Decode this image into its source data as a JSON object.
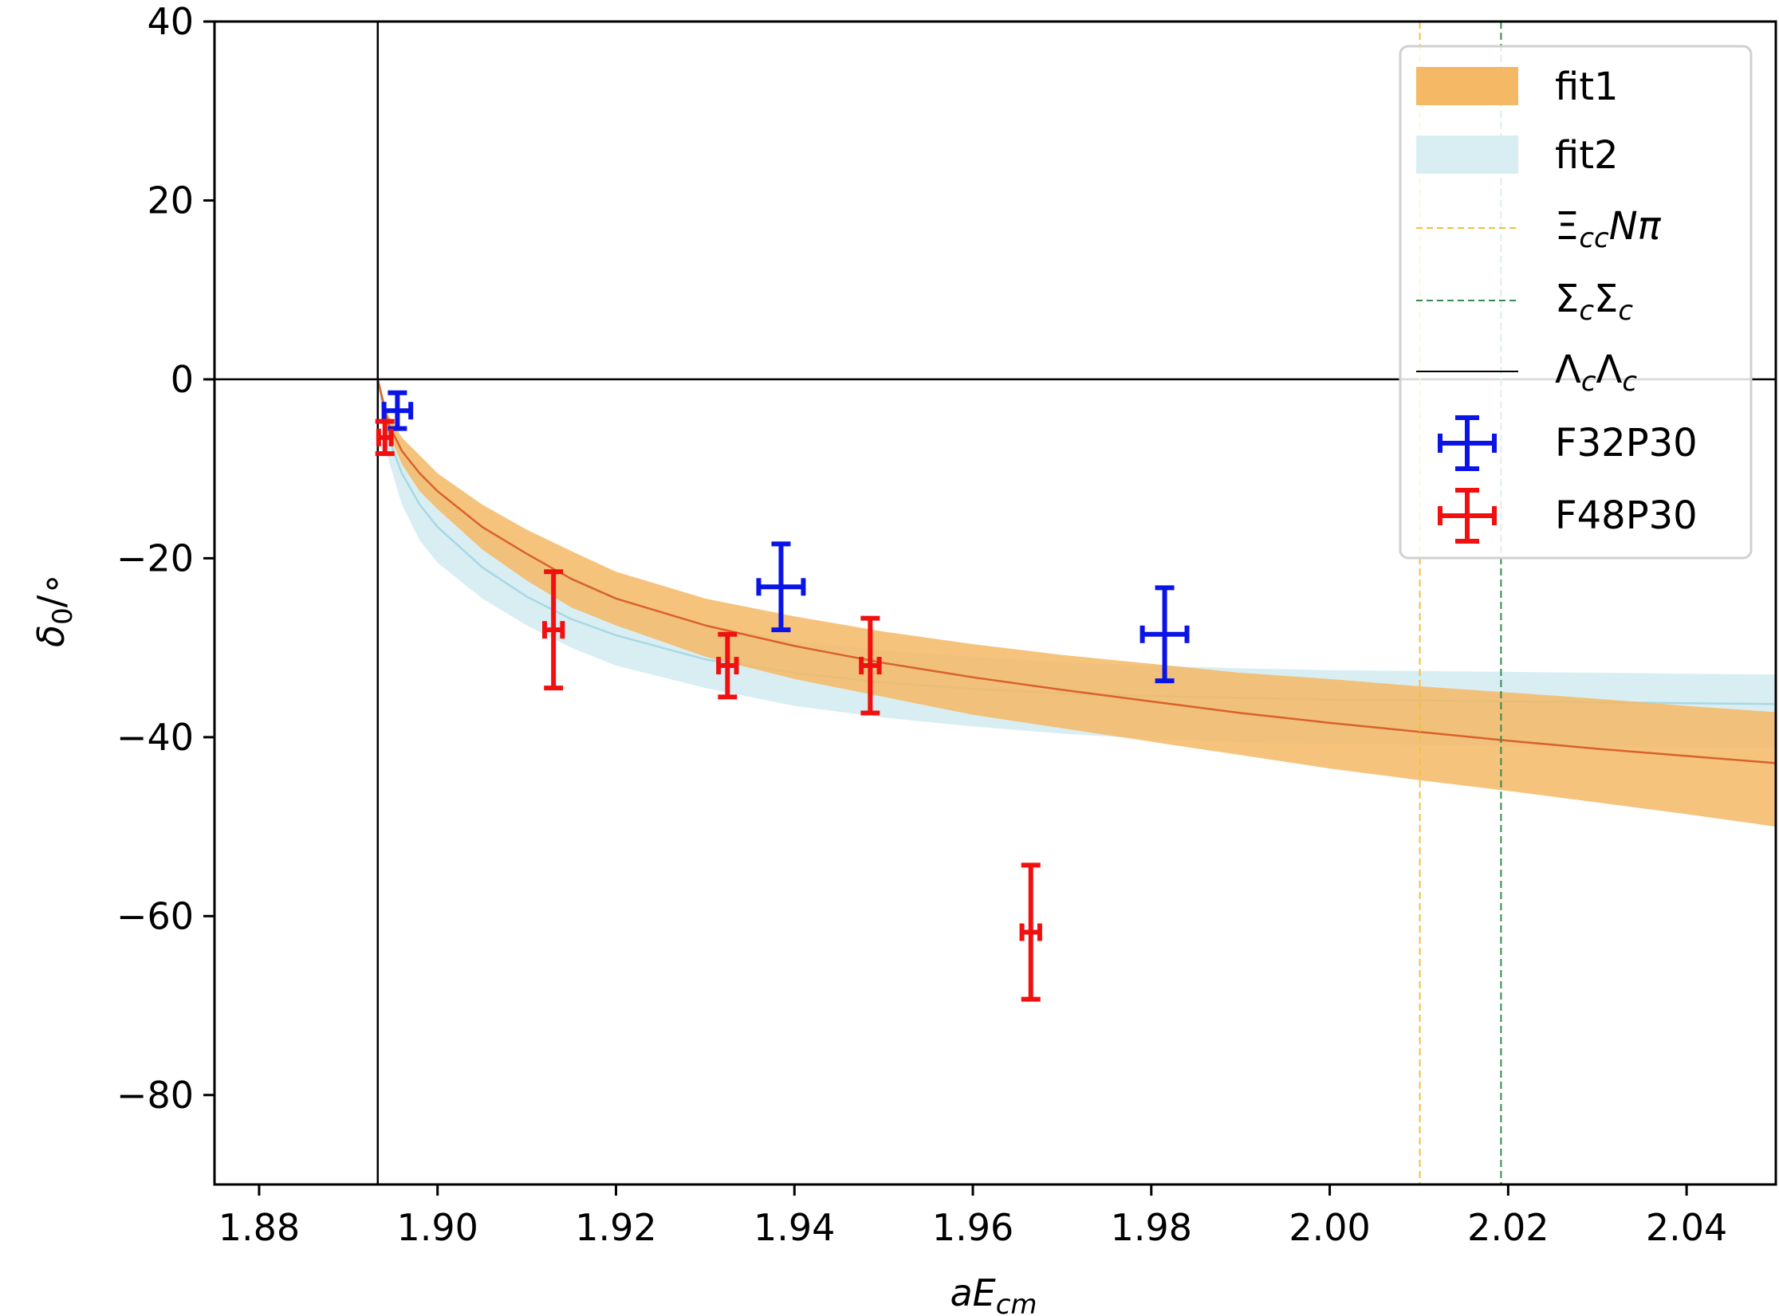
{
  "chart_data": {
    "type": "scatter",
    "xlabel_main": "aE",
    "xlabel_sub": "cm",
    "ylabel_main": "δ",
    "ylabel_sub": "0",
    "ylabel_rest": "/∘",
    "xlim": [
      1.875,
      2.05
    ],
    "ylim": [
      -90,
      40
    ],
    "xticks": [
      1.88,
      1.9,
      1.92,
      1.94,
      1.96,
      1.98,
      2.0,
      2.02,
      2.04
    ],
    "xtick_labels": [
      "1.88",
      "1.90",
      "1.92",
      "1.94",
      "1.96",
      "1.98",
      "2.00",
      "2.02",
      "2.04"
    ],
    "yticks": [
      40,
      20,
      0,
      -20,
      -40,
      -60,
      -80
    ],
    "ytick_labels": [
      "40",
      "20",
      "0",
      "−20",
      "−40",
      "−60",
      "−80"
    ],
    "grid": false,
    "legend_position": "top-right",
    "reference_lines": {
      "horizontal_zero": 0,
      "threshold_lambda": 1.8933,
      "threshold_xi": 2.0101,
      "threshold_sigma": 2.0192
    },
    "bands": [
      {
        "name": "fit1",
        "color": "#f5b865",
        "line_color": "#d9622b",
        "x": [
          1.8933,
          1.8945,
          1.896,
          1.898,
          1.9,
          1.905,
          1.91,
          1.915,
          1.92,
          1.93,
          1.94,
          1.95,
          1.96,
          1.97,
          1.98,
          1.99,
          2.0,
          2.01,
          2.02,
          2.03,
          2.04,
          2.05
        ],
        "lower": [
          0,
          -6,
          -9.5,
          -12.5,
          -14.5,
          -19,
          -22.5,
          -25.5,
          -27.5,
          -31,
          -33.5,
          -35.5,
          -37.5,
          -39,
          -40.5,
          -42,
          -43.5,
          -44.8,
          -46,
          -47.3,
          -48.6,
          -50
        ],
        "center": [
          0,
          -5,
          -8,
          -10.5,
          -12.5,
          -16.5,
          -19.5,
          -22.3,
          -24.5,
          -27.5,
          -29.8,
          -31.7,
          -33.3,
          -34.7,
          -36,
          -37.3,
          -38.4,
          -39.4,
          -40.4,
          -41.3,
          -42.1,
          -42.9
        ],
        "upper": [
          0,
          -4,
          -6.5,
          -8.5,
          -10.5,
          -14,
          -16.8,
          -19.2,
          -21.5,
          -24.5,
          -26.5,
          -28.2,
          -29.6,
          -30.8,
          -31.8,
          -32.8,
          -33.5,
          -34.3,
          -35,
          -35.7,
          -36.5,
          -37.2
        ]
      },
      {
        "name": "fit2",
        "color": "#d9eef3",
        "line_color": "#a8d8e2",
        "x": [
          1.8933,
          1.8945,
          1.896,
          1.898,
          1.9,
          1.905,
          1.91,
          1.915,
          1.92,
          1.93,
          1.94,
          1.95,
          1.96,
          1.97,
          1.98,
          1.99,
          2.0,
          2.01,
          2.02,
          2.03,
          2.04,
          2.05
        ],
        "lower": [
          0,
          -9,
          -14,
          -18,
          -20.5,
          -24.5,
          -27.5,
          -30,
          -32,
          -34.5,
          -36.5,
          -37.8,
          -38.8,
          -39.6,
          -40.2,
          -40.6,
          -40.8,
          -40.9,
          -41,
          -41.1,
          -41.2,
          -41.3
        ],
        "center": [
          0,
          -6.5,
          -10.5,
          -14,
          -16.5,
          -21,
          -24.3,
          -26.8,
          -28.6,
          -31.3,
          -32.8,
          -33.9,
          -34.6,
          -35.1,
          -35.4,
          -35.6,
          -35.8,
          -35.9,
          -36,
          -36.1,
          -36.2,
          -36.3
        ],
        "upper": [
          0,
          -5,
          -8,
          -10.5,
          -12.5,
          -16.5,
          -19.8,
          -22.5,
          -24.5,
          -27.5,
          -29.2,
          -30.3,
          -31,
          -31.6,
          -32,
          -32.3,
          -32.5,
          -32.6,
          -32.7,
          -32.8,
          -32.9,
          -33
        ]
      }
    ],
    "series": [
      {
        "name": "F32P30",
        "color": "#0a14e6",
        "points": [
          {
            "x": 1.8955,
            "y": -3.5,
            "xerr": 0.0015,
            "yerr": 2.0
          },
          {
            "x": 1.9385,
            "y": -23.2,
            "xerr": 0.0025,
            "yerr": 4.8
          },
          {
            "x": 1.9815,
            "y": -28.5,
            "xerr": 0.0025,
            "yerr": 5.2
          }
        ]
      },
      {
        "name": "F48P30",
        "color": "#f01010",
        "points": [
          {
            "x": 1.8941,
            "y": -6.5,
            "xerr": 0.0007,
            "yerr": 1.8
          },
          {
            "x": 1.913,
            "y": -28.0,
            "xerr": 0.001,
            "yerr": 6.5
          },
          {
            "x": 1.9325,
            "y": -32.0,
            "xerr": 0.001,
            "yerr": 3.5
          },
          {
            "x": 1.9485,
            "y": -32.0,
            "xerr": 0.001,
            "yerr": 5.3
          },
          {
            "x": 1.9665,
            "y": -61.8,
            "xerr": 0.001,
            "yerr": 7.5
          }
        ]
      }
    ],
    "legend": {
      "fit1": "fit1",
      "fit2": "fit2",
      "xi_main": "Ξ",
      "xi_sub": "cc",
      "xi_rest": "Nπ",
      "sigma_main1": "Σ",
      "sigma_sub1": "c",
      "sigma_main2": "Σ",
      "sigma_sub2": "c",
      "lambda_main1": "Λ",
      "lambda_sub1": "c",
      "lambda_main2": "Λ",
      "lambda_sub2": "c",
      "f32": "F32P30",
      "f48": "F48P30"
    },
    "colors": {
      "xi_line": "#f0c040",
      "sigma_line": "#3a8a50",
      "lambda_line": "#000000"
    }
  }
}
